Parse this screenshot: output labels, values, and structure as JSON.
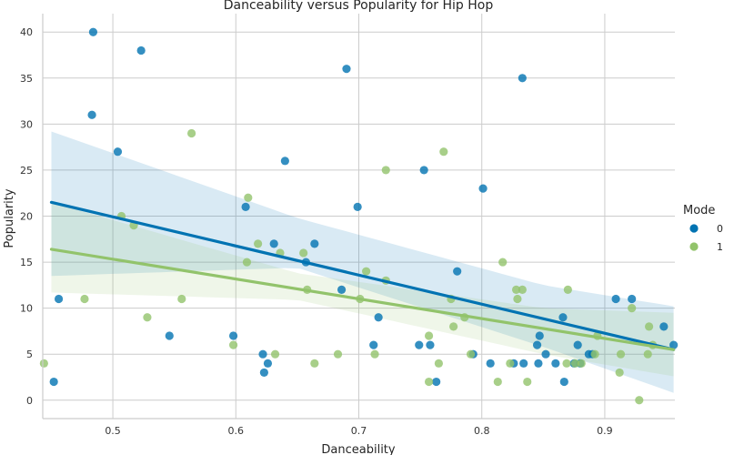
{
  "chart_data": {
    "type": "scatter",
    "title": "Danceability versus Popularity for Hip Hop",
    "xlabel": "Danceability",
    "ylabel": "Popularity",
    "xlim": [
      0.443,
      0.957
    ],
    "ylim": [
      -2,
      42
    ],
    "xticks": [
      0.5,
      0.6,
      0.7,
      0.8,
      0.9
    ],
    "yticks": [
      0,
      5,
      10,
      15,
      20,
      25,
      30,
      35,
      40
    ],
    "xtick_labels": [
      "0.5",
      "0.6",
      "0.7",
      "0.8",
      "0.9"
    ],
    "ytick_labels": [
      "0",
      "5",
      "10",
      "15",
      "20",
      "25",
      "30",
      "35",
      "40"
    ],
    "grid": true,
    "legend": {
      "title": "Mode",
      "placement": "right",
      "entries": [
        "0",
        "1"
      ]
    },
    "series": [
      {
        "name": "0",
        "color": "#0173b2",
        "points": [
          [
            0.452,
            2
          ],
          [
            0.456,
            11
          ],
          [
            0.484,
            40
          ],
          [
            0.483,
            31
          ],
          [
            0.504,
            27
          ],
          [
            0.523,
            38
          ],
          [
            0.546,
            7
          ],
          [
            0.598,
            7
          ],
          [
            0.608,
            21
          ],
          [
            0.622,
            5
          ],
          [
            0.623,
            3
          ],
          [
            0.626,
            4
          ],
          [
            0.631,
            17
          ],
          [
            0.64,
            26
          ],
          [
            0.657,
            15
          ],
          [
            0.664,
            17
          ],
          [
            0.686,
            12
          ],
          [
            0.69,
            36
          ],
          [
            0.699,
            21
          ],
          [
            0.712,
            6
          ],
          [
            0.716,
            9
          ],
          [
            0.749,
            6
          ],
          [
            0.753,
            25
          ],
          [
            0.758,
            6
          ],
          [
            0.763,
            2
          ],
          [
            0.78,
            14
          ],
          [
            0.793,
            5
          ],
          [
            0.801,
            23
          ],
          [
            0.807,
            4
          ],
          [
            0.826,
            4
          ],
          [
            0.833,
            35
          ],
          [
            0.834,
            4
          ],
          [
            0.845,
            6
          ],
          [
            0.847,
            7
          ],
          [
            0.846,
            4
          ],
          [
            0.852,
            5
          ],
          [
            0.86,
            4
          ],
          [
            0.866,
            9
          ],
          [
            0.867,
            2
          ],
          [
            0.875,
            4
          ],
          [
            0.878,
            6
          ],
          [
            0.88,
            4
          ],
          [
            0.887,
            5
          ],
          [
            0.89,
            5
          ],
          [
            0.909,
            11
          ],
          [
            0.922,
            11
          ],
          [
            0.948,
            8
          ],
          [
            0.956,
            6
          ]
        ],
        "fit": {
          "x": [
            0.45,
            0.956
          ],
          "y": [
            21.5,
            5.5
          ]
        },
        "ci_upper": {
          "x": [
            0.45,
            0.65,
            0.85,
            0.956
          ],
          "y": [
            29.2,
            19.8,
            12.5,
            10.2
          ]
        },
        "ci_lower": {
          "x": [
            0.45,
            0.65,
            0.85,
            0.956
          ],
          "y": [
            13.5,
            14.4,
            5.8,
            0.8
          ]
        }
      },
      {
        "name": "1",
        "color": "#92c36b",
        "points": [
          [
            0.444,
            4
          ],
          [
            0.477,
            11
          ],
          [
            0.507,
            20
          ],
          [
            0.517,
            19
          ],
          [
            0.528,
            9
          ],
          [
            0.556,
            11
          ],
          [
            0.564,
            29
          ],
          [
            0.598,
            6
          ],
          [
            0.609,
            15
          ],
          [
            0.61,
            22
          ],
          [
            0.618,
            17
          ],
          [
            0.632,
            5
          ],
          [
            0.636,
            16
          ],
          [
            0.655,
            16
          ],
          [
            0.658,
            12
          ],
          [
            0.664,
            4
          ],
          [
            0.683,
            5
          ],
          [
            0.701,
            11
          ],
          [
            0.706,
            14
          ],
          [
            0.713,
            5
          ],
          [
            0.722,
            25
          ],
          [
            0.722,
            13
          ],
          [
            0.757,
            7
          ],
          [
            0.757,
            2
          ],
          [
            0.765,
            4
          ],
          [
            0.769,
            27
          ],
          [
            0.775,
            11
          ],
          [
            0.777,
            8
          ],
          [
            0.786,
            9
          ],
          [
            0.791,
            5
          ],
          [
            0.813,
            2
          ],
          [
            0.817,
            15
          ],
          [
            0.823,
            4
          ],
          [
            0.828,
            12
          ],
          [
            0.829,
            11
          ],
          [
            0.833,
            12
          ],
          [
            0.837,
            2
          ],
          [
            0.869,
            4
          ],
          [
            0.87,
            12
          ],
          [
            0.876,
            4
          ],
          [
            0.881,
            4
          ],
          [
            0.892,
            5
          ],
          [
            0.894,
            7
          ],
          [
            0.912,
            3
          ],
          [
            0.913,
            5
          ],
          [
            0.922,
            10
          ],
          [
            0.928,
            0
          ],
          [
            0.935,
            5
          ],
          [
            0.936,
            8
          ],
          [
            0.939,
            6
          ]
        ],
        "fit": {
          "x": [
            0.45,
            0.956
          ],
          "y": [
            16.4,
            5.5
          ]
        },
        "ci_upper": {
          "x": [
            0.45,
            0.65,
            0.85,
            0.956
          ],
          "y": [
            21.5,
            13.8,
            10.0,
            9.5
          ]
        },
        "ci_lower": {
          "x": [
            0.45,
            0.65,
            0.85,
            0.956
          ],
          "y": [
            11.7,
            10.9,
            5.0,
            2.6
          ]
        }
      }
    ]
  }
}
